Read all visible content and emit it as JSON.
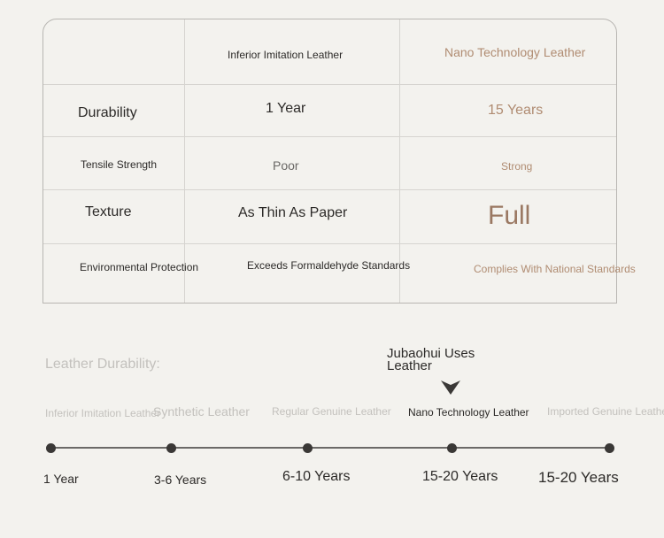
{
  "table": {
    "headers": [
      "",
      "Inferior Imitation Leather",
      "Nano Technology Leather"
    ],
    "rows": [
      {
        "label": "Durability",
        "inferior": "1 Year",
        "nano": "15 Years"
      },
      {
        "label": "Tensile Strength",
        "inferior": "Poor",
        "nano": "Strong"
      },
      {
        "label": "Texture",
        "inferior": "As Thin As Paper",
        "nano": "Full"
      },
      {
        "label": "Environmental Protection",
        "inferior": "Exceeds Formaldehyde Standards",
        "nano": "Complies With National Standards"
      }
    ]
  },
  "durability": {
    "title": "Leather Durability:",
    "callout": "Jubaohui Uses Leather",
    "types": [
      "Inferior Imitation Leather",
      "Synthetic Leather",
      "Regular Genuine Leather",
      "Nano Technology Leather",
      "Imported Genuine Leather"
    ],
    "years": [
      "1 Year",
      "3-6 Years",
      "6-10 Years",
      "15-20 Years",
      "15-20 Years"
    ],
    "highlighted_index": 3
  },
  "colors": {
    "accent": "#b08c72",
    "text": "#2c2a28",
    "muted": "#c3c1bd",
    "background": "#f3f2ee"
  }
}
